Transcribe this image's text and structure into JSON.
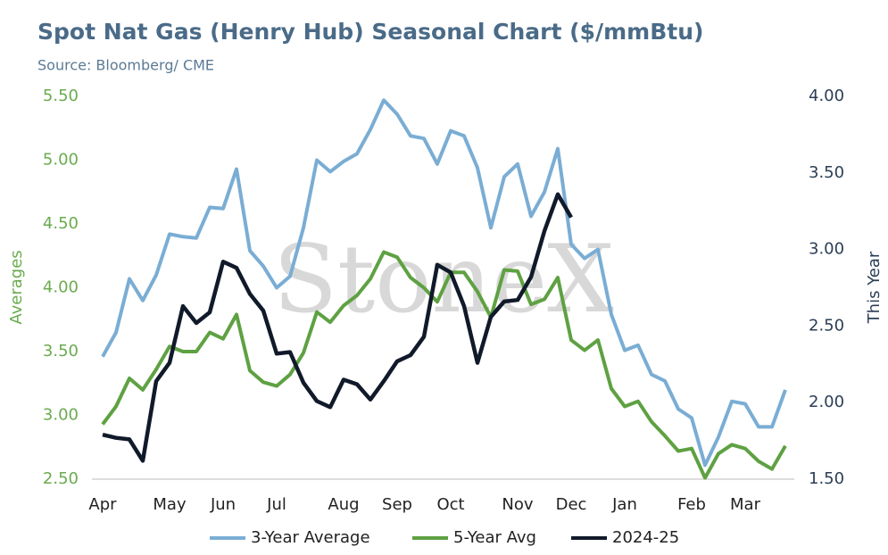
{
  "chart_data": {
    "type": "line",
    "title": "Spot Nat Gas (Henry Hub) Seasonal Chart ($/mmBtu)",
    "subtitle": "Source: Bloomberg/ CME",
    "watermark": "StoneX",
    "y_label": "Averages",
    "y2_label": "This Year",
    "categories": [
      "Apr",
      null,
      null,
      null,
      null,
      "May",
      null,
      null,
      null,
      "Jun",
      null,
      null,
      null,
      "Jul",
      null,
      null,
      null,
      null,
      "Aug",
      null,
      null,
      null,
      "Sep",
      null,
      null,
      null,
      "Oct",
      null,
      null,
      null,
      null,
      "Nov",
      null,
      null,
      null,
      "Dec",
      null,
      null,
      null,
      "Jan",
      null,
      null,
      null,
      null,
      "Feb",
      null,
      null,
      null,
      "Mar",
      null,
      null,
      null
    ],
    "ylim": [
      2.5,
      5.5
    ],
    "yticks": [
      {
        "value": 2.5,
        "label": "2.50"
      },
      {
        "value": 3,
        "label": "3.00"
      },
      {
        "value": 3.5,
        "label": "3.50"
      },
      {
        "value": 4,
        "label": "4.00"
      },
      {
        "value": 4.5,
        "label": "4.50"
      },
      {
        "value": 5,
        "label": "5.00"
      },
      {
        "value": 5.5,
        "label": "5.50"
      }
    ],
    "y2lim": [
      1.5,
      4.0
    ],
    "y2ticks": [
      {
        "value": 1.5,
        "label": "1.50"
      },
      {
        "value": 2,
        "label": "2.00"
      },
      {
        "value": 2.5,
        "label": "2.50"
      },
      {
        "value": 3,
        "label": "3.00"
      },
      {
        "value": 3.5,
        "label": "3.50"
      },
      {
        "value": 4,
        "label": "4.00"
      }
    ],
    "grid": false,
    "legend": "bottom",
    "series": [
      {
        "name": "3-Year Average",
        "color": "#7aadd4",
        "values": [
          3.46,
          3.65,
          4.07,
          3.9,
          4.1,
          4.42,
          4.4,
          4.39,
          4.63,
          4.62,
          4.93,
          4.29,
          4.17,
          4.0,
          4.09,
          4.47,
          5.0,
          4.91,
          4.99,
          5.05,
          5.24,
          5.47,
          5.36,
          5.19,
          5.17,
          4.97,
          5.23,
          5.19,
          4.94,
          4.47,
          4.87,
          4.97,
          4.56,
          4.75,
          5.09,
          4.34,
          4.23,
          4.3,
          3.79,
          3.51,
          3.55,
          3.32,
          3.27,
          3.05,
          2.98,
          2.61,
          2.83,
          3.11,
          3.09,
          2.91,
          2.91,
          3.2
        ]
      },
      {
        "name": "5-Year Avg",
        "color": "#5ea142",
        "values": [
          2.93,
          3.07,
          3.29,
          3.2,
          3.36,
          3.54,
          3.5,
          3.5,
          3.65,
          3.6,
          3.79,
          3.35,
          3.26,
          3.23,
          3.32,
          3.49,
          3.81,
          3.73,
          3.86,
          3.94,
          4.07,
          4.28,
          4.24,
          4.08,
          4.0,
          3.89,
          4.12,
          4.12,
          3.97,
          3.77,
          4.14,
          4.13,
          3.87,
          3.91,
          4.08,
          3.59,
          3.51,
          3.59,
          3.21,
          3.07,
          3.11,
          2.95,
          2.84,
          2.72,
          2.74,
          2.51,
          2.7,
          2.77,
          2.74,
          2.64,
          2.58,
          2.76
        ]
      },
      {
        "name": "2024-25",
        "color": "#111a2a",
        "axis": "y2",
        "values": [
          1.79,
          1.77,
          1.76,
          1.62,
          2.14,
          2.26,
          2.63,
          2.52,
          2.59,
          2.92,
          2.88,
          2.71,
          2.6,
          2.32,
          2.33,
          2.13,
          2.01,
          1.97,
          2.15,
          2.12,
          2.02,
          2.14,
          2.27,
          2.31,
          2.43,
          2.9,
          2.85,
          2.63,
          2.26,
          2.56,
          2.66,
          2.67,
          2.82,
          3.12,
          3.36,
          3.21,
          null,
          null,
          null,
          null,
          null,
          null,
          null,
          null,
          null,
          null,
          null,
          null,
          null,
          null,
          null,
          null
        ]
      }
    ]
  }
}
